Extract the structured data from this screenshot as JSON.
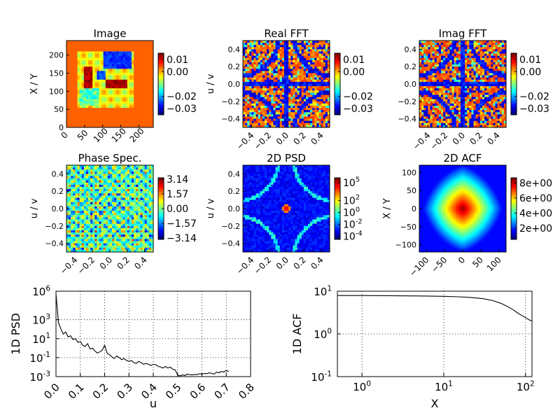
{
  "figure": {
    "background": "#ffffff"
  },
  "chart_data": [
    {
      "type": "heatmap",
      "title": "Image",
      "ylabel": "X / Y",
      "xticks": [
        "0",
        "50",
        "100",
        "150",
        "200"
      ],
      "yticks": [
        "0",
        "50",
        "100",
        "150",
        "200"
      ],
      "xlim": [
        0,
        240
      ],
      "ylim": [
        0,
        240
      ],
      "colorbar": {
        "ticks": [
          "0.01",
          "0.00",
          "−0.02",
          "−0.03"
        ],
        "values": [
          0.01,
          0.0,
          -0.02,
          -0.03
        ],
        "range": [
          -0.035,
          0.015
        ]
      },
      "colormap": "jet"
    },
    {
      "type": "heatmap",
      "title": "Real FFT",
      "ylabel": "u / v",
      "xticks": [
        "−0.4",
        "−0.2",
        "0.0",
        "0.2",
        "0.4"
      ],
      "yticks": [
        "−0.4",
        "−0.2",
        "0.0",
        "0.2",
        "0.4"
      ],
      "xlim": [
        -0.5,
        0.5
      ],
      "ylim": [
        -0.5,
        0.5
      ],
      "colorbar": {
        "ticks": [
          "0.01",
          "0.00",
          "−0.02",
          "−0.03"
        ],
        "values": [
          0.01,
          0.0,
          -0.02,
          -0.03
        ],
        "range": [
          -0.035,
          0.015
        ]
      },
      "colormap": "jet"
    },
    {
      "type": "heatmap",
      "title": "Imag FFT",
      "ylabel": "",
      "xticks": [
        "−0.4",
        "−0.2",
        "0.0",
        "0.2",
        "0.4"
      ],
      "yticks": [
        "−0.4",
        "−0.2",
        "0.0",
        "0.2",
        "0.4"
      ],
      "xlim": [
        -0.5,
        0.5
      ],
      "ylim": [
        -0.5,
        0.5
      ],
      "colorbar": {
        "ticks": [
          "0.01",
          "0.00",
          "−0.02",
          "−0.03"
        ],
        "values": [
          0.01,
          0.0,
          -0.02,
          -0.03
        ],
        "range": [
          -0.035,
          0.015
        ]
      },
      "colormap": "jet"
    },
    {
      "type": "heatmap",
      "title": "Phase Spec.",
      "ylabel": "u / v",
      "xticks": [
        "−0.4",
        "−0.2",
        "0.0",
        "0.2",
        "0.4"
      ],
      "yticks": [
        "−0.4",
        "−0.2",
        "0.0",
        "0.2",
        "0.4"
      ],
      "xlim": [
        -0.5,
        0.5
      ],
      "ylim": [
        -0.5,
        0.5
      ],
      "colorbar": {
        "ticks": [
          "3.14",
          "1.57",
          "0.00",
          "−1.57",
          "−3.14"
        ],
        "values": [
          3.14,
          1.57,
          0.0,
          -1.57,
          -3.14
        ],
        "range": [
          -3.3,
          3.3
        ]
      },
      "colormap": "jet"
    },
    {
      "type": "heatmap",
      "title": "2D PSD",
      "ylabel": "u / v",
      "xticks": [
        "−0.4",
        "−0.2",
        "0.0",
        "0.2",
        "0.4"
      ],
      "yticks": [
        "−0.4",
        "−0.2",
        "0.0",
        "0.2",
        "0.4"
      ],
      "xlim": [
        -0.5,
        0.5
      ],
      "ylim": [
        -0.5,
        0.5
      ],
      "colorbar": {
        "scale": "log",
        "ticks": [
          "10",
          "10",
          "10",
          "10",
          "10"
        ],
        "exponents": [
          "5",
          "2",
          "0",
          "-2",
          "-4"
        ],
        "values": [
          5,
          2,
          0,
          -2,
          -4
        ],
        "range": [
          -4.5,
          5.8
        ]
      },
      "colormap": "jet"
    },
    {
      "type": "heatmap",
      "title": "2D ACF",
      "ylabel": "X / Y",
      "xticks": [
        "−100",
        "−50",
        "0",
        "50",
        "100"
      ],
      "yticks": [
        "−100",
        "−50",
        "0",
        "50",
        "100"
      ],
      "xlim": [
        -120,
        120
      ],
      "ylim": [
        -120,
        120
      ],
      "colorbar": {
        "ticks": [
          "8e+00",
          "6e+00",
          "4e+00",
          "2e+00"
        ],
        "values": [
          8,
          6,
          4,
          2
        ],
        "range": [
          0.5,
          8.7
        ]
      },
      "colormap": "jet"
    },
    {
      "type": "line",
      "ylabel": "1D PSD",
      "xlabel": "u",
      "xlim": [
        0,
        0.8
      ],
      "ylim": [
        0.001,
        1000000
      ],
      "yscale": "log",
      "grid": true,
      "xticks": [
        "0.0",
        "0.1",
        "0.2",
        "0.3",
        "0.4",
        "0.5",
        "0.6",
        "0.7",
        "0.8"
      ],
      "yticks": [
        {
          "base": "10",
          "exp": "6",
          "value": 1000000
        },
        {
          "base": "10",
          "exp": "3",
          "value": 1000
        },
        {
          "base": "10",
          "exp": "1",
          "value": 10
        },
        {
          "base": "10",
          "exp": "-1",
          "value": 0.1
        },
        {
          "base": "10",
          "exp": "-3",
          "value": 0.001
        }
      ],
      "x": [
        0.0,
        0.005,
        0.01,
        0.02,
        0.03,
        0.04,
        0.05,
        0.06,
        0.07,
        0.08,
        0.09,
        0.1,
        0.11,
        0.12,
        0.13,
        0.14,
        0.15,
        0.16,
        0.17,
        0.18,
        0.19,
        0.2,
        0.21,
        0.22,
        0.23,
        0.24,
        0.25,
        0.26,
        0.27,
        0.28,
        0.29,
        0.3,
        0.31,
        0.32,
        0.33,
        0.34,
        0.35,
        0.36,
        0.37,
        0.38,
        0.39,
        0.4,
        0.41,
        0.42,
        0.43,
        0.44,
        0.45,
        0.46,
        0.47,
        0.48,
        0.49,
        0.5,
        0.51,
        0.52,
        0.53,
        0.54,
        0.55,
        0.56,
        0.57,
        0.58,
        0.59,
        0.6,
        0.61,
        0.62,
        0.63,
        0.64,
        0.65,
        0.66,
        0.67,
        0.68,
        0.69,
        0.7,
        0.705,
        0.71
      ],
      "y": [
        500000,
        20000,
        500,
        100,
        30,
        50,
        15,
        20,
        8,
        10,
        4,
        5,
        2,
        1.5,
        3,
        0.8,
        1,
        0.5,
        0.3,
        0.4,
        0.6,
        2,
        0.3,
        0.2,
        0.12,
        0.08,
        0.15,
        0.1,
        0.06,
        0.08,
        0.05,
        0.04,
        0.05,
        0.03,
        0.025,
        0.04,
        0.03,
        0.02,
        0.025,
        0.02,
        0.015,
        0.02,
        0.018,
        0.012,
        0.01,
        0.008,
        0.012,
        0.008,
        0.01,
        0.006,
        0.005,
        0.0015,
        0.0012,
        0.0015,
        0.0013,
        0.0018,
        0.0016,
        0.0015,
        0.0017,
        0.0016,
        0.002,
        0.0018,
        0.0022,
        0.002,
        0.0025,
        0.0022,
        0.0018,
        0.003,
        0.0025,
        0.0035,
        0.003,
        0.0045,
        0.0035,
        0.004
      ]
    },
    {
      "type": "line",
      "ylabel": "1D ACF",
      "xlabel": "X",
      "xscale": "log",
      "yscale": "log",
      "xlim": [
        0.5,
        120
      ],
      "ylim": [
        0.1,
        10
      ],
      "grid": true,
      "xticks": [
        {
          "base": "10",
          "exp": "0",
          "value": 1
        },
        {
          "base": "10",
          "exp": "1",
          "value": 10
        },
        {
          "base": "10",
          "exp": "2",
          "value": 100
        }
      ],
      "yticks": [
        {
          "base": "10",
          "exp": "1",
          "value": 10
        },
        {
          "base": "10",
          "exp": "0",
          "value": 1
        },
        {
          "base": "10",
          "exp": "-1",
          "value": 0.1
        }
      ],
      "x": [
        0.5,
        1,
        2,
        5,
        10,
        15,
        20,
        30,
        40,
        50,
        60,
        70,
        80,
        90,
        100,
        110,
        120
      ],
      "y": [
        7.9,
        7.9,
        7.85,
        7.75,
        7.6,
        7.4,
        7.2,
        6.7,
        6.0,
        5.2,
        4.4,
        3.7,
        3.1,
        2.7,
        2.4,
        2.15,
        2.0
      ]
    }
  ]
}
